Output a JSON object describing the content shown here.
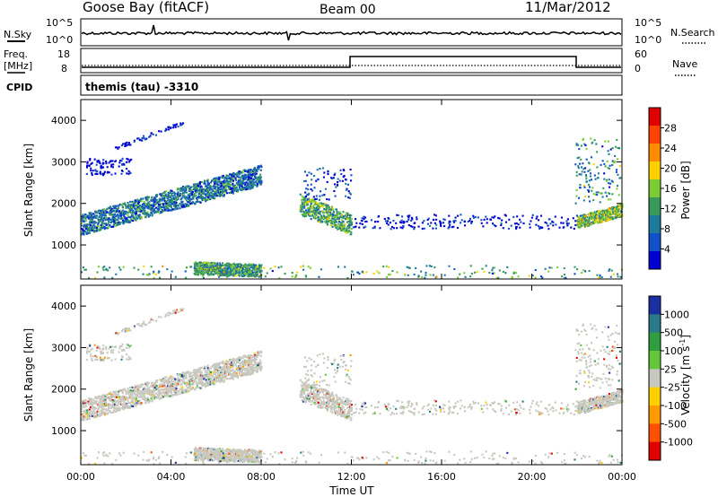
{
  "header": {
    "station": "Goose Bay (fitACF)",
    "beam": "Beam 00",
    "date": "11/Mar/2012"
  },
  "top_panels": {
    "nsky_label": "N.Sky",
    "nsky_ticks": [
      "10^5",
      "10^0"
    ],
    "nsearch_ticks": [
      "10^5",
      "10^0"
    ],
    "nsearch_label": "N.Search",
    "freq_label_1": "Freq.",
    "freq_label_2": "[MHz]",
    "freq_ticks": [
      "18",
      "8"
    ],
    "nave_ticks": [
      "60",
      "0"
    ],
    "nave_label": "Nave",
    "cpid_label": "CPID",
    "cpid_value": "themis (tau) -3310"
  },
  "power_panel": {
    "ylabel": "Slant Range [km]",
    "yticks": [
      "4000",
      "3000",
      "2000",
      "1000"
    ],
    "colorbar_label": "Power [dB]",
    "colorbar_ticks": [
      "28",
      "24",
      "20",
      "16",
      "12",
      "8",
      "4"
    ],
    "colorbar_colors": [
      "#e00000",
      "#ff4400",
      "#ff8c00",
      "#ffd000",
      "#7ccd35",
      "#3a9a5a",
      "#1e7a9a",
      "#1050c8",
      "#0000d0"
    ]
  },
  "velocity_panel": {
    "ylabel": "Slant Range [km]",
    "yticks": [
      "4000",
      "3000",
      "2000",
      "1000"
    ],
    "colorbar_label": "Velocity [m s^-1]",
    "colorbar_ticks": [
      "1000",
      "500",
      "100",
      "25",
      "-25",
      "-100",
      "-500",
      "-1000"
    ],
    "colorbar_colors": [
      "#1a2fa0",
      "#2a7a8a",
      "#2e9e3e",
      "#62c83a",
      "#c8c8c0",
      "#ffd000",
      "#ff9a00",
      "#ff5000",
      "#e00000"
    ]
  },
  "x_axis": {
    "ticks": [
      "00:00",
      "04:00",
      "08:00",
      "12:00",
      "16:00",
      "20:00",
      "00:00"
    ],
    "label": "Time UT"
  },
  "chart_data": {
    "type": "heatmap",
    "time_range_hours": [
      0,
      24
    ],
    "slant_range_km": [
      180,
      4500
    ],
    "power_scatter_regions": [
      {
        "t_start": 0.0,
        "t_end": 8.0,
        "range_start_km": 1400,
        "range_end_km": 2100,
        "range_slope_km_per_h": 150,
        "power_db": 10
      },
      {
        "t_start": 5.0,
        "t_end": 8.0,
        "range_start_km": 400,
        "range_end_km": 700,
        "range_slope_km_per_h": -20,
        "power_db": 14
      },
      {
        "t_start": 9.7,
        "t_end": 12.0,
        "range_start_km": 1900,
        "range_end_km": 1400,
        "range_slope_km_per_h": -220,
        "power_db": 16
      },
      {
        "t_start": 22.0,
        "t_end": 24.0,
        "range_start_km": 1500,
        "range_end_km": 1800,
        "range_slope_km_per_h": 150,
        "power_db": 18
      }
    ],
    "velocity_typical_m_s": [
      -25,
      25
    ]
  }
}
